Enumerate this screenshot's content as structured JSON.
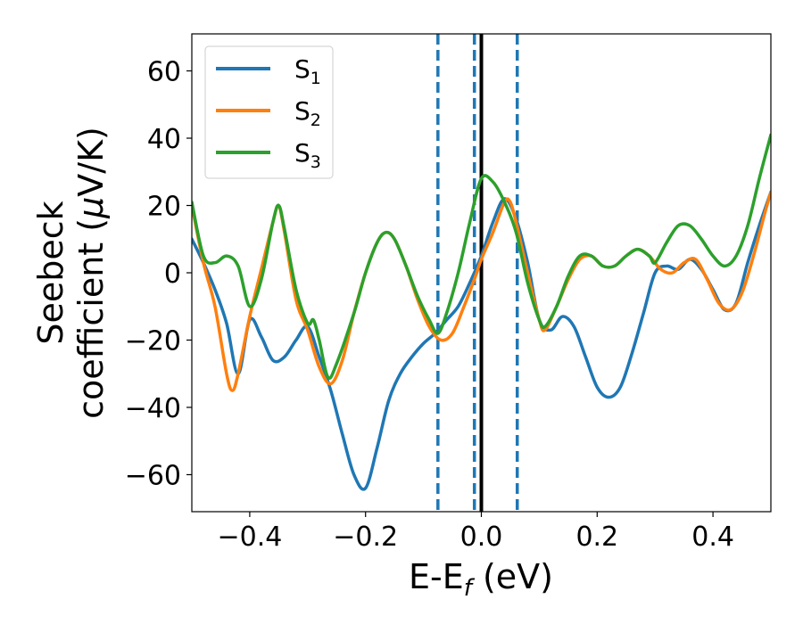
{
  "chart_data": {
    "type": "line",
    "xlabel": "E-E",
    "xlabel_sub": "f",
    "xlabel_unit": " (eV)",
    "ylabel_line1": "Seebeck",
    "ylabel_line2": "coefficient  (",
    "ylabel_mu": "μ",
    "ylabel_unit": "V/K)",
    "xlim": [
      -0.5,
      0.5
    ],
    "ylim": [
      -71,
      71
    ],
    "x_ticks": [
      -0.4,
      -0.2,
      0.0,
      0.2,
      0.4
    ],
    "x_tick_labels": [
      "−0.4",
      "−0.2",
      "0.0",
      "0.2",
      "0.4"
    ],
    "y_ticks": [
      -60,
      -40,
      -20,
      0,
      20,
      40,
      60
    ],
    "y_tick_labels": [
      "−60",
      "−40",
      "−20",
      "0",
      "20",
      "40",
      "60"
    ],
    "grid": false,
    "legend_position": "top-left",
    "vertical_lines": [
      {
        "x": -0.075,
        "style": "dashed",
        "color": "#1f77b4"
      },
      {
        "x": -0.012,
        "style": "dashed",
        "color": "#1f77b4"
      },
      {
        "x": 0.0,
        "style": "solid",
        "color": "#000000"
      },
      {
        "x": 0.062,
        "style": "dashed",
        "color": "#1f77b4"
      }
    ],
    "series": [
      {
        "name": "S",
        "name_sub": "1",
        "color": "#1f77b4",
        "points": [
          [
            -0.5,
            10
          ],
          [
            -0.48,
            3
          ],
          [
            -0.46,
            -5
          ],
          [
            -0.44,
            -15
          ],
          [
            -0.42,
            -30
          ],
          [
            -0.4,
            -14
          ],
          [
            -0.38,
            -19
          ],
          [
            -0.36,
            -26
          ],
          [
            -0.34,
            -25
          ],
          [
            -0.32,
            -20
          ],
          [
            -0.3,
            -16
          ],
          [
            -0.28,
            -25
          ],
          [
            -0.26,
            -35
          ],
          [
            -0.24,
            -48
          ],
          [
            -0.22,
            -60
          ],
          [
            -0.2,
            -64
          ],
          [
            -0.18,
            -52
          ],
          [
            -0.16,
            -38
          ],
          [
            -0.14,
            -30
          ],
          [
            -0.12,
            -25
          ],
          [
            -0.1,
            -21
          ],
          [
            -0.08,
            -18
          ],
          [
            -0.06,
            -14
          ],
          [
            -0.04,
            -10
          ],
          [
            -0.02,
            -3
          ],
          [
            0.0,
            5
          ],
          [
            0.02,
            15
          ],
          [
            0.04,
            22
          ],
          [
            0.06,
            16
          ],
          [
            0.08,
            3
          ],
          [
            0.1,
            -14
          ],
          [
            0.12,
            -17
          ],
          [
            0.14,
            -13
          ],
          [
            0.16,
            -16
          ],
          [
            0.18,
            -25
          ],
          [
            0.2,
            -34
          ],
          [
            0.22,
            -37
          ],
          [
            0.24,
            -34
          ],
          [
            0.26,
            -24
          ],
          [
            0.28,
            -12
          ],
          [
            0.3,
            0
          ],
          [
            0.32,
            2
          ],
          [
            0.34,
            1
          ],
          [
            0.36,
            4
          ],
          [
            0.38,
            1
          ],
          [
            0.4,
            -5
          ],
          [
            0.42,
            -11
          ],
          [
            0.44,
            -9
          ],
          [
            0.46,
            3
          ],
          [
            0.48,
            14
          ],
          [
            0.5,
            24
          ]
        ]
      },
      {
        "name": "S",
        "name_sub": "2",
        "color": "#ff7f0e",
        "points": [
          [
            -0.5,
            20
          ],
          [
            -0.48,
            3
          ],
          [
            -0.46,
            -10
          ],
          [
            -0.44,
            -30
          ],
          [
            -0.43,
            -35
          ],
          [
            -0.42,
            -30
          ],
          [
            -0.4,
            -13
          ],
          [
            -0.38,
            1
          ],
          [
            -0.36,
            15
          ],
          [
            -0.35,
            20
          ],
          [
            -0.34,
            12
          ],
          [
            -0.32,
            -8
          ],
          [
            -0.3,
            -17
          ],
          [
            -0.28,
            -28
          ],
          [
            -0.26,
            -33
          ],
          [
            -0.24,
            -26
          ],
          [
            -0.22,
            -12
          ],
          [
            -0.2,
            0
          ],
          [
            -0.18,
            9
          ],
          [
            -0.165,
            12
          ],
          [
            -0.15,
            10
          ],
          [
            -0.13,
            2
          ],
          [
            -0.11,
            -8
          ],
          [
            -0.09,
            -16
          ],
          [
            -0.07,
            -20
          ],
          [
            -0.05,
            -18
          ],
          [
            -0.03,
            -10
          ],
          [
            -0.01,
            -1
          ],
          [
            0.0,
            4
          ],
          [
            0.02,
            12
          ],
          [
            0.04,
            21
          ],
          [
            0.05,
            21
          ],
          [
            0.06,
            15
          ],
          [
            0.08,
            0
          ],
          [
            0.1,
            -14
          ],
          [
            0.11,
            -17
          ],
          [
            0.13,
            -10
          ],
          [
            0.15,
            -2
          ],
          [
            0.17,
            4
          ],
          [
            0.19,
            5
          ],
          [
            0.21,
            2
          ],
          [
            0.23,
            2
          ],
          [
            0.25,
            5
          ],
          [
            0.27,
            7
          ],
          [
            0.29,
            5
          ],
          [
            0.31,
            1
          ],
          [
            0.33,
            0
          ],
          [
            0.35,
            3
          ],
          [
            0.37,
            4
          ],
          [
            0.39,
            -2
          ],
          [
            0.41,
            -9
          ],
          [
            0.43,
            -11
          ],
          [
            0.45,
            -6
          ],
          [
            0.47,
            5
          ],
          [
            0.49,
            18
          ],
          [
            0.5,
            24
          ]
        ]
      },
      {
        "name": "S",
        "name_sub": "3",
        "color": "#2ca02c",
        "points": [
          [
            -0.5,
            21
          ],
          [
            -0.48,
            5
          ],
          [
            -0.46,
            3
          ],
          [
            -0.44,
            5
          ],
          [
            -0.42,
            2
          ],
          [
            -0.4,
            -10
          ],
          [
            -0.38,
            -2
          ],
          [
            -0.36,
            15
          ],
          [
            -0.35,
            20
          ],
          [
            -0.34,
            13
          ],
          [
            -0.32,
            -5
          ],
          [
            -0.3,
            -15
          ],
          [
            -0.29,
            -14
          ],
          [
            -0.28,
            -20
          ],
          [
            -0.265,
            -31
          ],
          [
            -0.25,
            -27
          ],
          [
            -0.22,
            -12
          ],
          [
            -0.2,
            0
          ],
          [
            -0.18,
            9
          ],
          [
            -0.165,
            12
          ],
          [
            -0.15,
            10
          ],
          [
            -0.13,
            2
          ],
          [
            -0.11,
            -7
          ],
          [
            -0.09,
            -14
          ],
          [
            -0.075,
            -18
          ],
          [
            -0.06,
            -12
          ],
          [
            -0.04,
            0
          ],
          [
            -0.02,
            15
          ],
          [
            0.0,
            28
          ],
          [
            0.02,
            27
          ],
          [
            0.04,
            21
          ],
          [
            0.06,
            12
          ],
          [
            0.08,
            -3
          ],
          [
            0.1,
            -14
          ],
          [
            0.11,
            -16
          ],
          [
            0.13,
            -10
          ],
          [
            0.15,
            -1
          ],
          [
            0.17,
            5
          ],
          [
            0.19,
            5
          ],
          [
            0.21,
            2
          ],
          [
            0.23,
            2
          ],
          [
            0.25,
            5
          ],
          [
            0.27,
            7
          ],
          [
            0.29,
            5
          ],
          [
            0.3,
            3
          ],
          [
            0.32,
            9
          ],
          [
            0.34,
            14
          ],
          [
            0.36,
            14
          ],
          [
            0.38,
            10
          ],
          [
            0.4,
            5
          ],
          [
            0.42,
            2
          ],
          [
            0.44,
            5
          ],
          [
            0.46,
            14
          ],
          [
            0.48,
            28
          ],
          [
            0.5,
            41
          ]
        ]
      }
    ]
  }
}
